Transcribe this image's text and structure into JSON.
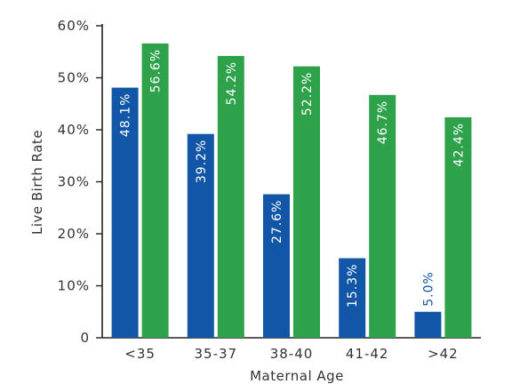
{
  "chart_data": {
    "type": "bar",
    "categories": [
      "<35",
      "35-37",
      "38-40",
      "41-42",
      ">42"
    ],
    "series": [
      {
        "color": "#1256a8",
        "values": [
          48.1,
          39.2,
          27.6,
          15.3,
          5.0
        ],
        "labels": [
          "48.1%",
          "39.2%",
          "27.6%",
          "15.3%",
          "5.0%"
        ]
      },
      {
        "color": "#2ea14b",
        "values": [
          56.6,
          54.2,
          52.2,
          46.7,
          42.4
        ],
        "labels": [
          "56.6%",
          "54.2%",
          "52.2%",
          "46.7%",
          "42.4%"
        ]
      }
    ],
    "xlabel": "Maternal Age",
    "ylabel": "Live Birth Rate",
    "ylim": [
      0,
      60
    ],
    "yticks": [
      0,
      10,
      20,
      30,
      40,
      50,
      60
    ],
    "ytick_labels": [
      "0",
      "10%",
      "20%",
      "30%",
      "40%",
      "50%",
      "60%"
    ],
    "grid": false,
    "legend": "none"
  }
}
